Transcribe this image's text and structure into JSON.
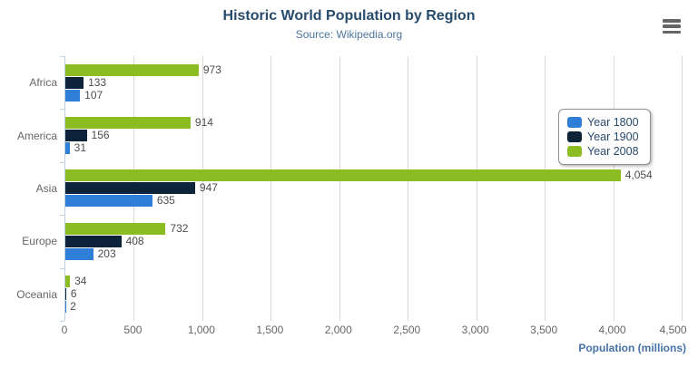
{
  "header": {
    "title": "Historic World Population by Region",
    "subtitle": "Source: Wikipedia.org"
  },
  "menu": {
    "icon": "hamburger-menu-icon"
  },
  "chart_data": {
    "type": "bar",
    "orientation": "horizontal",
    "title": "Historic World Population by Region",
    "subtitle": "Source: Wikipedia.org",
    "categories": [
      "Africa",
      "America",
      "Asia",
      "Europe",
      "Oceania"
    ],
    "series": [
      {
        "name": "Year 1800",
        "color": "#2f7ed8",
        "values": [
          107,
          31,
          635,
          203,
          2
        ]
      },
      {
        "name": "Year 1900",
        "color": "#0d233a",
        "values": [
          133,
          156,
          947,
          408,
          6
        ]
      },
      {
        "name": "Year 2008",
        "color": "#8bbc21",
        "values": [
          973,
          914,
          4054,
          732,
          34
        ]
      }
    ],
    "series_display_order_top_to_bottom": [
      "Year 2008",
      "Year 1900",
      "Year 1800"
    ],
    "data_labels": [
      "973",
      "133",
      "107",
      "914",
      "156",
      "31",
      "4,054",
      "947",
      "635",
      "732",
      "408",
      "203",
      "34",
      "6",
      "2"
    ],
    "xlabel": "Population (millions)",
    "ylabel": "",
    "xlim": [
      0,
      4500
    ],
    "x_ticks": [
      0,
      500,
      1000,
      1500,
      2000,
      2500,
      3000,
      3500,
      4000,
      4500
    ],
    "x_tick_labels": [
      "0",
      "500",
      "1,000",
      "1,500",
      "2,000",
      "2,500",
      "3,000",
      "3,500",
      "4,000",
      "4,500"
    ],
    "grid": true,
    "legend_position": "right-middle",
    "legend_items": [
      "Year 1800",
      "Year 1900",
      "Year 2008"
    ]
  },
  "styles": {
    "title_color": "#274b6d",
    "subtitle_color": "#4d759e",
    "axis_title_color": "#4572a7",
    "tick_label_color": "#666666",
    "data_label_color": "#4d4d4d",
    "legend_text_color": "#274b6d",
    "legend_border_color": "#909090",
    "grid_color": "#d8d8d8",
    "axis_line_color": "#c0d0e0",
    "series_colors": {
      "Year 1800": "#2f7ed8",
      "Year 1900": "#0d233a",
      "Year 2008": "#8bbc21"
    }
  }
}
